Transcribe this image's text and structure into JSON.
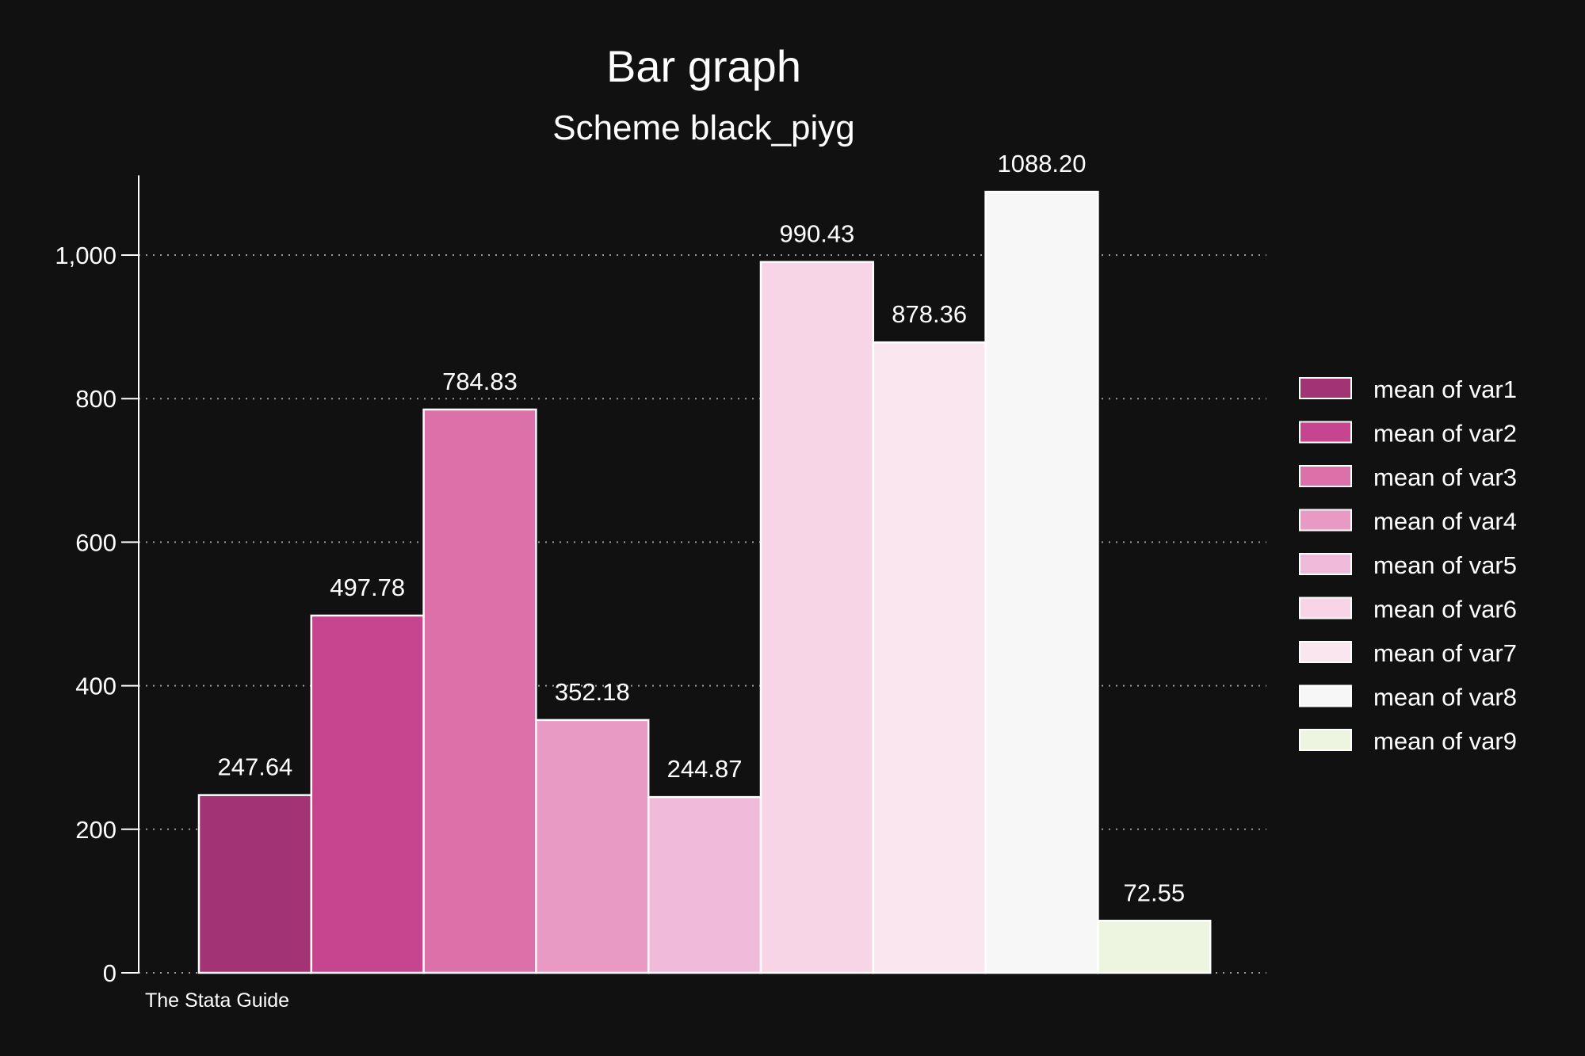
{
  "chart_data": {
    "type": "bar",
    "title": "Bar graph",
    "subtitle": "Scheme black_piyg",
    "note": "The Stata Guide",
    "xlabel": "",
    "ylabel": "",
    "ylim": [
      0,
      1100
    ],
    "yticks": [
      0,
      200,
      400,
      600,
      800,
      1000
    ],
    "ytick_labels": [
      "0",
      "200",
      "400",
      "600",
      "800",
      "1,000"
    ],
    "grid": true,
    "legend_position": "right",
    "series": [
      {
        "name": "mean of var1",
        "value": 247.64,
        "label": "247.64",
        "color": "#a33474"
      },
      {
        "name": "mean of var2",
        "value": 497.78,
        "label": "497.78",
        "color": "#c5458f"
      },
      {
        "name": "mean of var3",
        "value": 784.83,
        "label": "784.83",
        "color": "#db71a8"
      },
      {
        "name": "mean of var4",
        "value": 352.18,
        "label": "352.18",
        "color": "#e899c4"
      },
      {
        "name": "mean of var5",
        "value": 244.87,
        "label": "244.87",
        "color": "#f0badb"
      },
      {
        "name": "mean of var6",
        "value": 990.43,
        "label": "990.43",
        "color": "#f8d5e6"
      },
      {
        "name": "mean of var7",
        "value": 878.36,
        "label": "878.36",
        "color": "#fae6ef"
      },
      {
        "name": "mean of var8",
        "value": 1088.2,
        "label": "1088.20",
        "color": "#f7f7f7"
      },
      {
        "name": "mean of var9",
        "value": 72.55,
        "label": "72.55",
        "color": "#edf5e1"
      }
    ]
  }
}
